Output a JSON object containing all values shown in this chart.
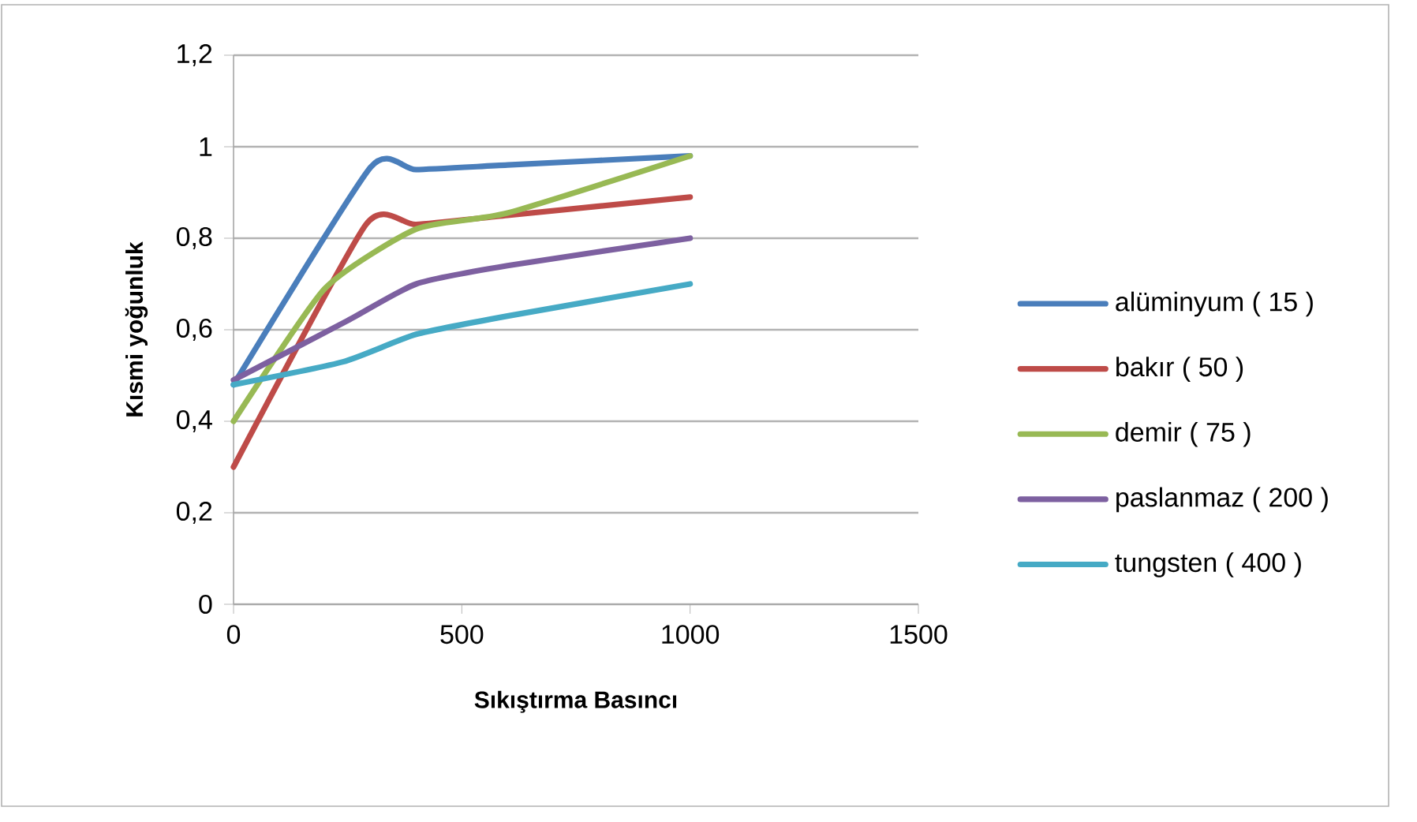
{
  "chart_data": {
    "type": "line",
    "xlabel": "Sıkıştırma Basıncı",
    "ylabel": "Kısmi yoğunluk",
    "xlim": [
      0,
      1500
    ],
    "xticks": [
      0,
      500,
      1000,
      1500
    ],
    "ylim": [
      0,
      1.2
    ],
    "yticks": [
      0,
      {
        "value": 0.2,
        "label": "0,2"
      },
      {
        "value": 0.4,
        "label": "0,4"
      },
      {
        "value": 0.6,
        "label": "0,6"
      },
      {
        "value": 0.8,
        "label": "0,8"
      },
      1,
      {
        "value": 1.2,
        "label": "1,2"
      }
    ],
    "grid": "y",
    "legend": "right",
    "marker": "none",
    "series": [
      {
        "name": "alüminyum ( 15 )",
        "color": "#4a7ebb",
        "x": [
          0,
          300,
          400,
          600,
          1000
        ],
        "values": [
          0.48,
          0.955,
          0.95,
          0.96,
          0.98
        ]
      },
      {
        "name": "bakır ( 50 )",
        "color": "#be4b48",
        "x": [
          0,
          290,
          400,
          600,
          1000
        ],
        "values": [
          0.3,
          0.83,
          0.83,
          0.85,
          0.89
        ]
      },
      {
        "name": "demir ( 75 )",
        "color": "#98b954",
        "x": [
          0,
          200,
          400,
          600,
          1000
        ],
        "values": [
          0.4,
          0.69,
          0.82,
          0.855,
          0.98
        ]
      },
      {
        "name": "paslanmaz ( 200 )",
        "color": "#7d60a0",
        "x": [
          0,
          250,
          400,
          600,
          1000
        ],
        "values": [
          0.49,
          0.62,
          0.7,
          0.74,
          0.8
        ]
      },
      {
        "name": "tungsten ( 400 )",
        "color": "#46aac5",
        "x": [
          0,
          240,
          400,
          600,
          1000
        ],
        "values": [
          0.48,
          0.53,
          0.59,
          0.63,
          0.7
        ]
      }
    ]
  }
}
